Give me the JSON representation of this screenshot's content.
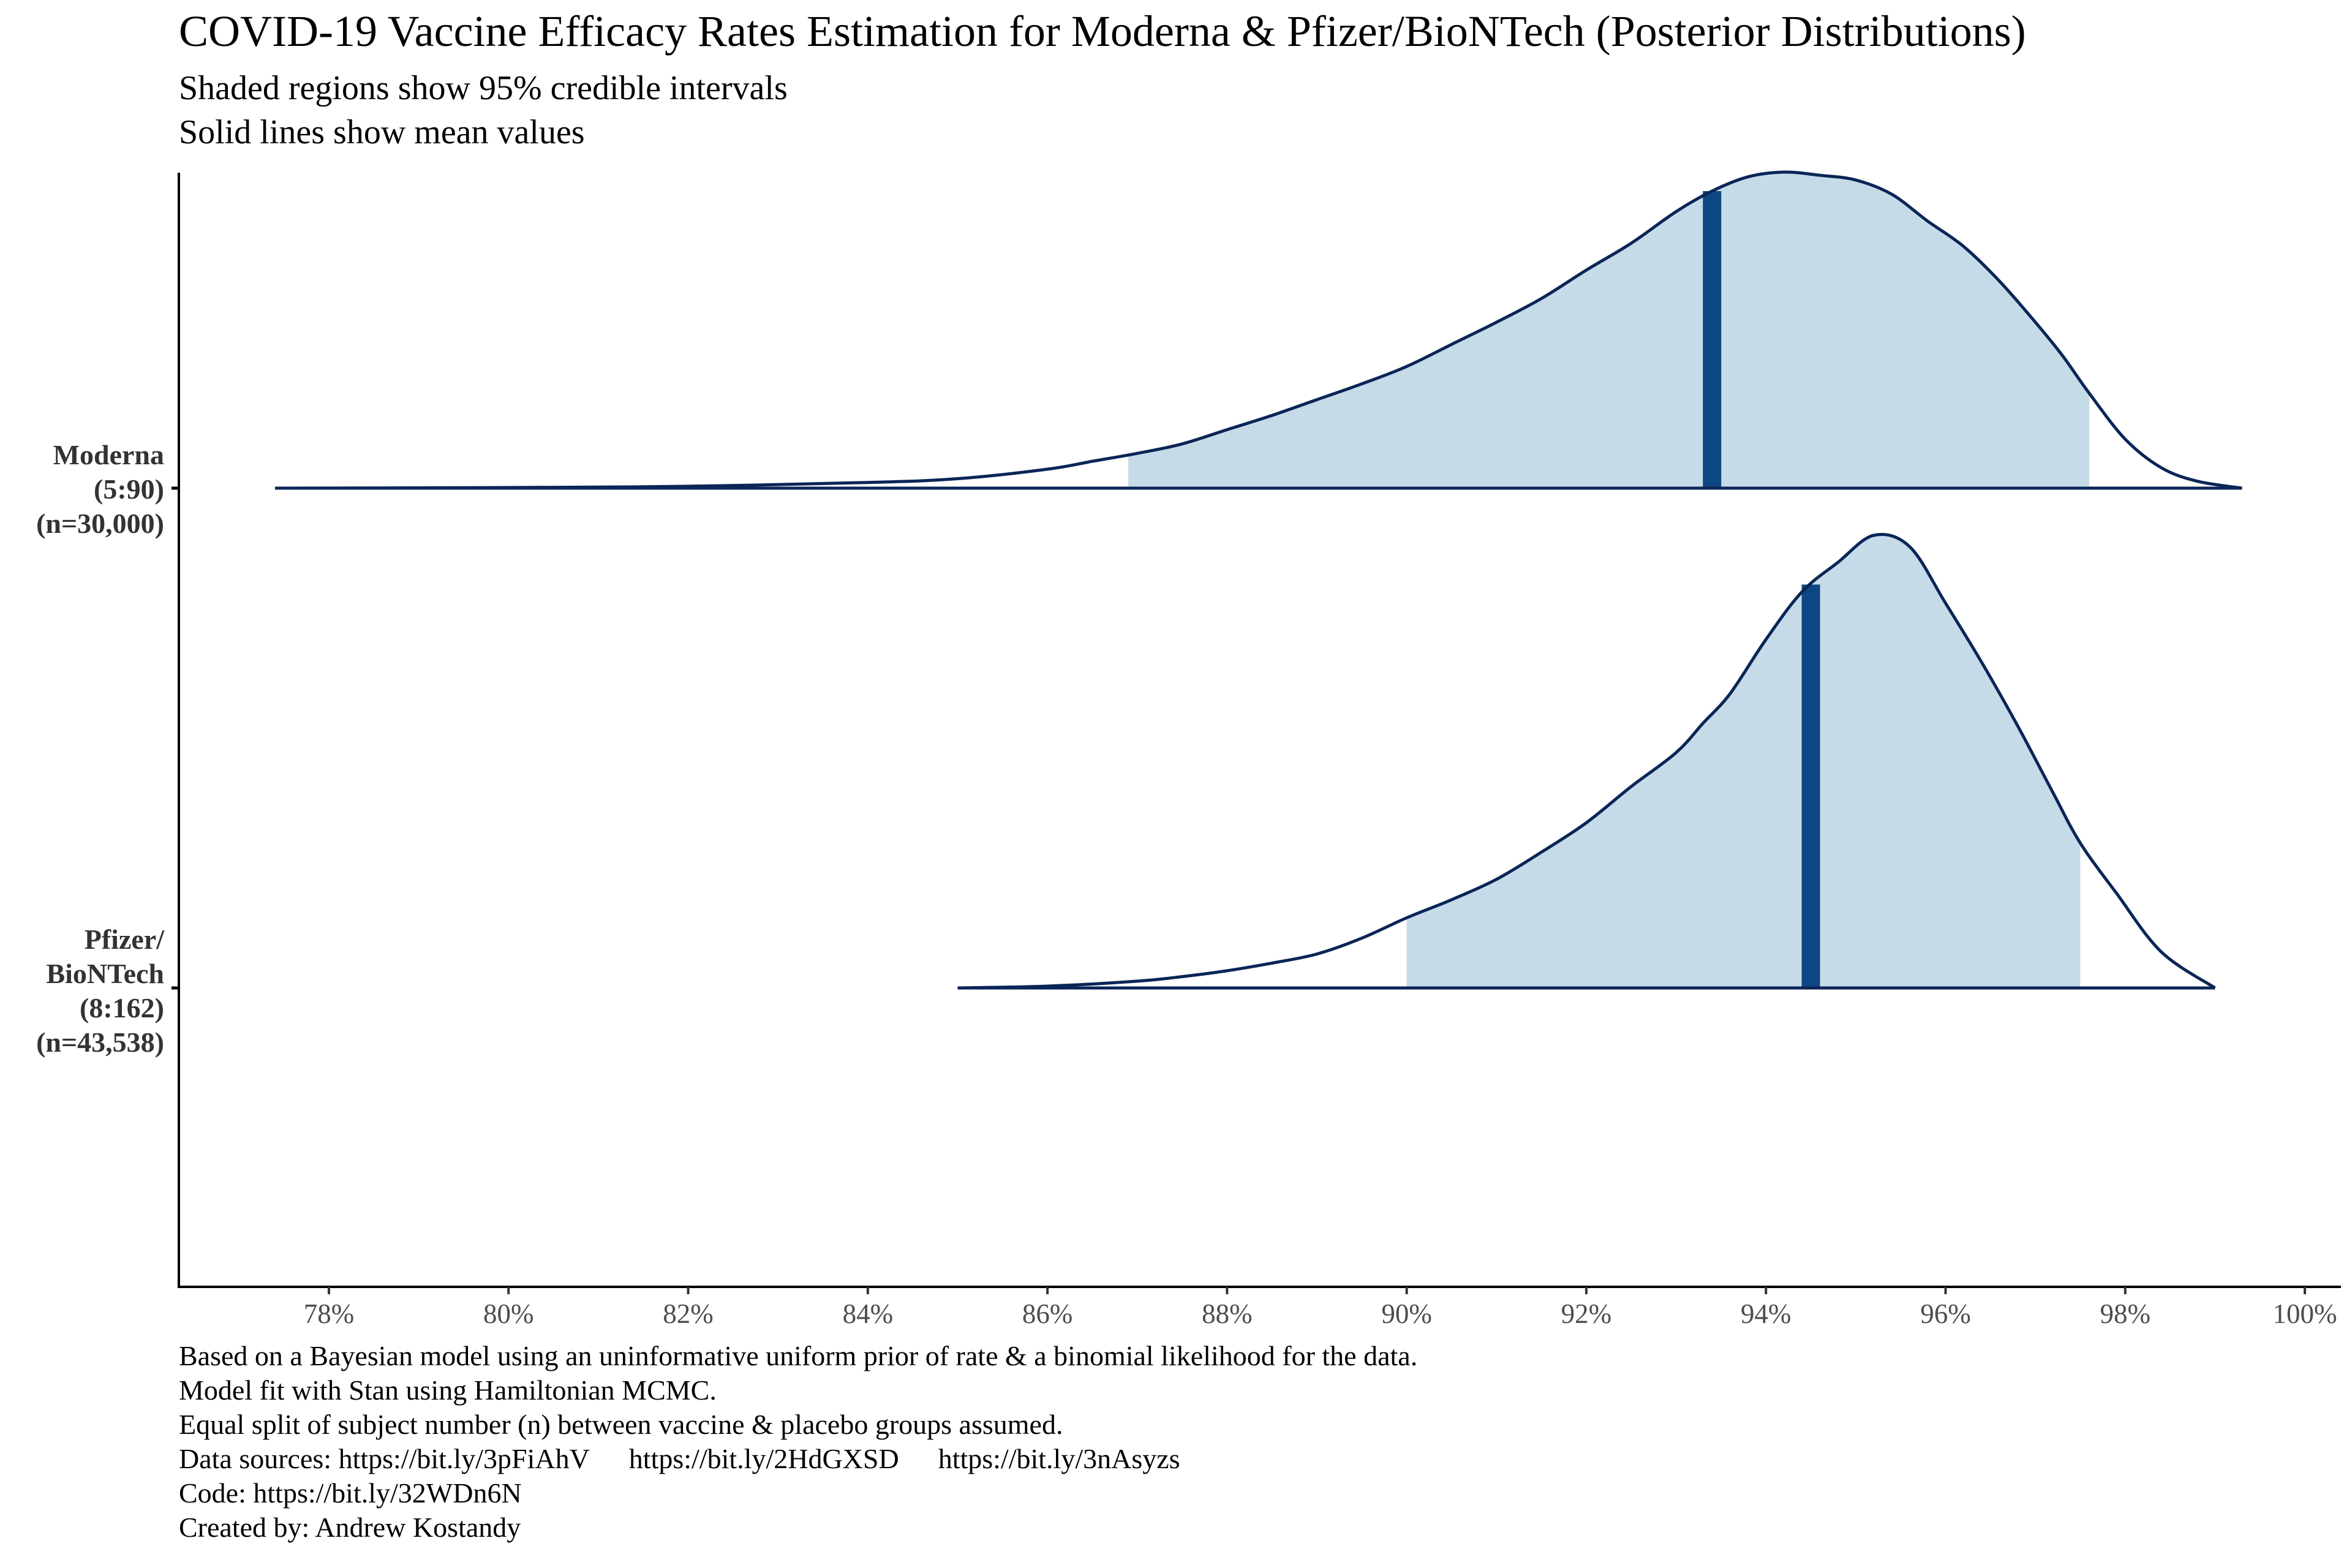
{
  "chart_data": {
    "type": "ridgeline-density",
    "title": "COVID-19 Vaccine Efficacy Rates Estimation for Moderna & Pfizer/BioNTech (Posterior Distributions)",
    "subtitle_lines": [
      "Shaded regions show 95% credible intervals",
      "Solid lines show mean values"
    ],
    "x_axis": {
      "label": "",
      "ticks": [
        78,
        80,
        82,
        84,
        86,
        88,
        90,
        92,
        94,
        96,
        98,
        100
      ],
      "tick_labels": [
        "78%",
        "80%",
        "82%",
        "84%",
        "86%",
        "88%",
        "90%",
        "92%",
        "94%",
        "96%",
        "98%",
        "100%"
      ],
      "range": [
        76.7,
        100.4
      ]
    },
    "series": [
      {
        "name": "Moderna",
        "label_lines": [
          "Moderna",
          "(5:90)",
          "(n=30,000)"
        ],
        "mean": 93.4,
        "ci95": [
          86.9,
          97.6
        ],
        "max_relative_height": 1.0,
        "density": [
          [
            77.4,
            0.0
          ],
          [
            80,
            0.002
          ],
          [
            82,
            0.006
          ],
          [
            84,
            0.018
          ],
          [
            85,
            0.03
          ],
          [
            86,
            0.06
          ],
          [
            86.5,
            0.085
          ],
          [
            87,
            0.11
          ],
          [
            87.5,
            0.14
          ],
          [
            88,
            0.185
          ],
          [
            88.5,
            0.23
          ],
          [
            89,
            0.28
          ],
          [
            89.5,
            0.33
          ],
          [
            90,
            0.385
          ],
          [
            90.5,
            0.455
          ],
          [
            91,
            0.525
          ],
          [
            91.5,
            0.6
          ],
          [
            92,
            0.69
          ],
          [
            92.5,
            0.775
          ],
          [
            93,
            0.875
          ],
          [
            93.4,
            0.94
          ],
          [
            93.8,
            0.985
          ],
          [
            94.2,
            1.0
          ],
          [
            94.6,
            0.99
          ],
          [
            95,
            0.975
          ],
          [
            95.4,
            0.93
          ],
          [
            95.8,
            0.845
          ],
          [
            96.2,
            0.765
          ],
          [
            96.6,
            0.655
          ],
          [
            97,
            0.525
          ],
          [
            97.3,
            0.42
          ],
          [
            97.6,
            0.3
          ],
          [
            98,
            0.155
          ],
          [
            98.4,
            0.065
          ],
          [
            98.8,
            0.022
          ],
          [
            99.3,
            0.0
          ]
        ]
      },
      {
        "name": "Pfizer/BioNTech",
        "label_lines": [
          "Pfizer/",
          "BioNTech",
          "(8:162)",
          "(n=43,538)"
        ],
        "mean": 94.5,
        "ci95": [
          90.0,
          97.5
        ],
        "max_relative_height": 1.0,
        "density": [
          [
            85.0,
            0.0
          ],
          [
            86,
            0.004
          ],
          [
            87,
            0.015
          ],
          [
            87.5,
            0.025
          ],
          [
            88,
            0.038
          ],
          [
            88.5,
            0.055
          ],
          [
            89,
            0.075
          ],
          [
            89.5,
            0.11
          ],
          [
            90,
            0.155
          ],
          [
            90.5,
            0.195
          ],
          [
            91,
            0.24
          ],
          [
            91.5,
            0.3
          ],
          [
            92,
            0.365
          ],
          [
            92.5,
            0.445
          ],
          [
            93,
            0.52
          ],
          [
            93.3,
            0.585
          ],
          [
            93.6,
            0.65
          ],
          [
            94,
            0.77
          ],
          [
            94.4,
            0.875
          ],
          [
            94.8,
            0.94
          ],
          [
            95.2,
            1.0
          ],
          [
            95.6,
            0.975
          ],
          [
            96,
            0.85
          ],
          [
            96.4,
            0.72
          ],
          [
            96.8,
            0.58
          ],
          [
            97.2,
            0.43
          ],
          [
            97.5,
            0.32
          ],
          [
            97.9,
            0.21
          ],
          [
            98.4,
            0.08
          ],
          [
            99.0,
            0.0
          ]
        ]
      }
    ],
    "colors": {
      "fill": "#c6dbe8",
      "outline": "#0a2557",
      "mean_line": "#0d4682",
      "axis": "#000000"
    },
    "grid": false,
    "legend": "none"
  },
  "caption_lines": [
    "Based on a Bayesian model using an uninformative uniform prior of rate & a binomial likelihood for the data.",
    "Model fit with Stan using Hamiltonian MCMC.",
    "Equal split of subject number (n) between vaccine & placebo groups assumed."
  ],
  "data_sources": {
    "prefix": "Data sources: https://bit.ly/3pFiAhV",
    "link2": "https://bit.ly/2HdGXSD",
    "link3": "https://bit.ly/3nAsyzs"
  },
  "code_line": "Code: https://bit.ly/32WDn6N",
  "credit_line": "Created by: Andrew Kostandy"
}
